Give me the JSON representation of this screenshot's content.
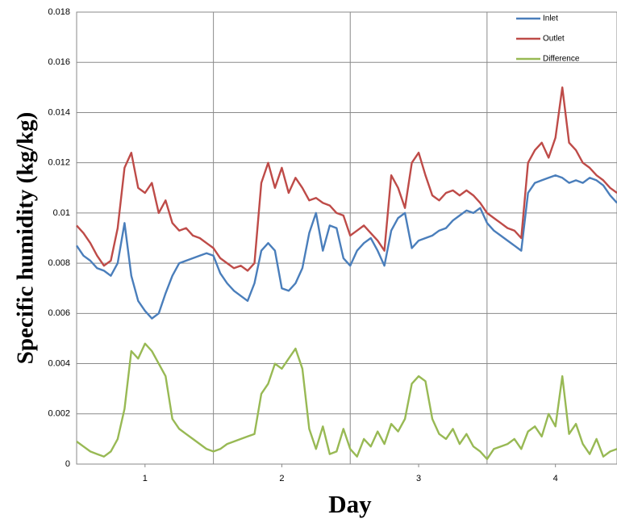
{
  "chart_data": {
    "type": "line",
    "y_label": "Specific humidity (kg/kg)",
    "x_label": "Day",
    "x": [
      0.5,
      0.55,
      0.6,
      0.65,
      0.7,
      0.75,
      0.8,
      0.85,
      0.9,
      0.95,
      1.0,
      1.05,
      1.1,
      1.15,
      1.2,
      1.25,
      1.3,
      1.35,
      1.4,
      1.45,
      1.5,
      1.55,
      1.6,
      1.65,
      1.7,
      1.75,
      1.8,
      1.85,
      1.9,
      1.95,
      2.0,
      2.05,
      2.1,
      2.15,
      2.2,
      2.25,
      2.3,
      2.35,
      2.4,
      2.45,
      2.5,
      2.55,
      2.6,
      2.65,
      2.7,
      2.75,
      2.8,
      2.85,
      2.9,
      2.95,
      3.0,
      3.05,
      3.1,
      3.15,
      3.2,
      3.25,
      3.3,
      3.35,
      3.4,
      3.45,
      3.5,
      3.55,
      3.6,
      3.65,
      3.7,
      3.75,
      3.8,
      3.85,
      3.9,
      3.95,
      4.0,
      4.05,
      4.1,
      4.15,
      4.2,
      4.25,
      4.3,
      4.35,
      4.4,
      4.45
    ],
    "series": [
      {
        "name": "Inlet",
        "color": "#4a7ebb",
        "values": [
          0.0087,
          0.0083,
          0.0081,
          0.0078,
          0.0077,
          0.0075,
          0.008,
          0.0096,
          0.0075,
          0.0065,
          0.0061,
          0.0058,
          0.006,
          0.0068,
          0.0075,
          0.008,
          0.0081,
          0.0082,
          0.0083,
          0.0084,
          0.0083,
          0.0076,
          0.0072,
          0.0069,
          0.0067,
          0.0065,
          0.0072,
          0.0085,
          0.0088,
          0.0085,
          0.007,
          0.0069,
          0.0072,
          0.0078,
          0.0092,
          0.01,
          0.0085,
          0.0095,
          0.0094,
          0.0082,
          0.0079,
          0.0085,
          0.0088,
          0.009,
          0.0085,
          0.0079,
          0.0093,
          0.0098,
          0.01,
          0.0086,
          0.0089,
          0.009,
          0.0091,
          0.0093,
          0.0094,
          0.0097,
          0.0099,
          0.0101,
          0.01,
          0.0102,
          0.0096,
          0.0093,
          0.0091,
          0.0089,
          0.0087,
          0.0085,
          0.0108,
          0.0112,
          0.0113,
          0.0114,
          0.0115,
          0.0114,
          0.0112,
          0.0113,
          0.0112,
          0.0114,
          0.0113,
          0.0111,
          0.0107,
          0.0104
        ]
      },
      {
        "name": "Outlet",
        "color": "#be4b48",
        "values": [
          0.0095,
          0.0092,
          0.0088,
          0.0083,
          0.0079,
          0.0081,
          0.0094,
          0.0118,
          0.0124,
          0.011,
          0.0108,
          0.0112,
          0.01,
          0.0105,
          0.0096,
          0.0093,
          0.0094,
          0.0091,
          0.009,
          0.0088,
          0.0086,
          0.0082,
          0.008,
          0.0078,
          0.0079,
          0.0077,
          0.008,
          0.0112,
          0.012,
          0.011,
          0.0118,
          0.0108,
          0.0114,
          0.011,
          0.0105,
          0.0106,
          0.0104,
          0.0103,
          0.01,
          0.0099,
          0.0091,
          0.0093,
          0.0095,
          0.0092,
          0.0089,
          0.0085,
          0.0115,
          0.011,
          0.0102,
          0.012,
          0.0124,
          0.0115,
          0.0107,
          0.0105,
          0.0108,
          0.0109,
          0.0107,
          0.0109,
          0.0107,
          0.0104,
          0.01,
          0.0098,
          0.0096,
          0.0094,
          0.0093,
          0.009,
          0.012,
          0.0125,
          0.0128,
          0.0122,
          0.013,
          0.015,
          0.0128,
          0.0125,
          0.012,
          0.0118,
          0.0115,
          0.0113,
          0.011,
          0.0108
        ]
      },
      {
        "name": "Difference",
        "color": "#98b954",
        "values": [
          0.0009,
          0.0007,
          0.0005,
          0.0004,
          0.0003,
          0.0005,
          0.001,
          0.0022,
          0.0045,
          0.0042,
          0.0048,
          0.0045,
          0.004,
          0.0035,
          0.0018,
          0.0014,
          0.0012,
          0.001,
          0.0008,
          0.0006,
          0.0005,
          0.0006,
          0.0008,
          0.0009,
          0.001,
          0.0011,
          0.0012,
          0.0028,
          0.0032,
          0.004,
          0.0038,
          0.0042,
          0.0046,
          0.0038,
          0.0014,
          0.0006,
          0.0015,
          0.0004,
          0.0005,
          0.0014,
          0.0006,
          0.0003,
          0.001,
          0.0007,
          0.0013,
          0.0008,
          0.0016,
          0.0013,
          0.0018,
          0.0032,
          0.0035,
          0.0033,
          0.0018,
          0.0012,
          0.001,
          0.0014,
          0.0008,
          0.0012,
          0.0007,
          0.0005,
          0.0002,
          0.0006,
          0.0007,
          0.0008,
          0.001,
          0.0006,
          0.0013,
          0.0015,
          0.0011,
          0.002,
          0.0015,
          0.0035,
          0.0012,
          0.0016,
          0.0008,
          0.0004,
          0.001,
          0.0003,
          0.0005,
          0.0006
        ]
      }
    ],
    "xlim": [
      0.5,
      4.45
    ],
    "xticks": [
      1,
      2,
      3,
      4
    ],
    "x_gridlines": [
      1.5,
      2.5,
      3.5
    ],
    "ylim": [
      0,
      0.018
    ],
    "yticks": [
      0,
      0.002,
      0.004,
      0.006,
      0.008,
      0.01,
      0.012,
      0.014,
      0.016,
      0.018
    ],
    "grid": true,
    "legend": "top-right"
  }
}
